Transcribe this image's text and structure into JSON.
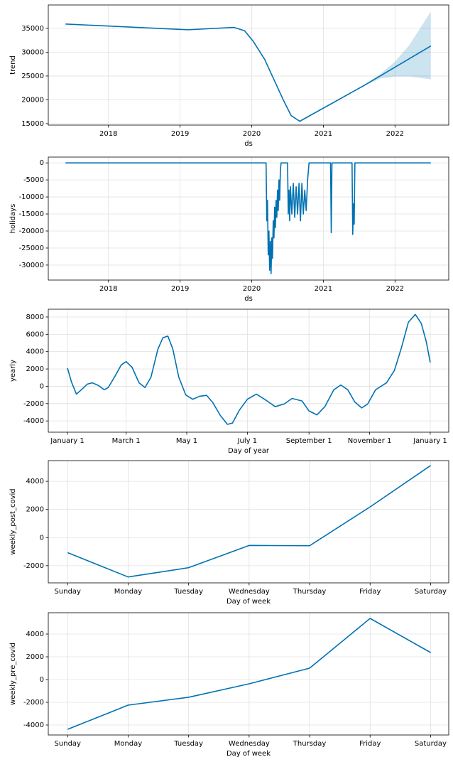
{
  "chart_data": [
    {
      "type": "line",
      "ylabel": "trend",
      "xlabel": "ds",
      "color": "#0072B2",
      "band_color": "#0072B2",
      "grid": true,
      "x": [
        2017.4,
        2019.11,
        2019.75,
        2019.9,
        2020.02,
        2020.18,
        2020.44,
        2020.55,
        2020.67,
        2021.59,
        2022.5
      ],
      "values": [
        35900,
        34700,
        35200,
        34500,
        32300,
        28500,
        20000,
        16700,
        15500,
        23200,
        31300
      ],
      "band": {
        "x": [
          2021.59,
          2021.8,
          2022.0,
          2022.2,
          2022.5
        ],
        "upper": [
          23300,
          25500,
          28000,
          31500,
          38500
        ],
        "lower": [
          23100,
          24500,
          24900,
          24900,
          24300
        ]
      },
      "xlim": [
        2017.16,
        2022.75
      ],
      "xticks": [
        2018,
        2019,
        2020,
        2021,
        2022
      ],
      "ylim": [
        14700,
        39900
      ],
      "yticks": [
        15000,
        20000,
        25000,
        30000,
        35000
      ]
    },
    {
      "type": "line",
      "ylabel": "holidays",
      "xlabel": "ds",
      "color": "#0072B2",
      "grid": true,
      "x": [
        2017.4,
        2020.2,
        2020.21,
        2020.22,
        2020.23,
        2020.24,
        2020.25,
        2020.26,
        2020.27,
        2020.28,
        2020.29,
        2020.3,
        2020.31,
        2020.32,
        2020.33,
        2020.34,
        2020.35,
        2020.36,
        2020.37,
        2020.38,
        2020.39,
        2020.4,
        2020.41,
        2020.5,
        2020.51,
        2020.52,
        2020.53,
        2020.54,
        2020.56,
        2020.58,
        2020.6,
        2020.62,
        2020.64,
        2020.66,
        2020.68,
        2020.7,
        2020.72,
        2020.74,
        2020.76,
        2020.78,
        2020.8,
        2021.1,
        2021.11,
        2021.12,
        2021.4,
        2021.41,
        2021.42,
        2021.43,
        2021.44,
        2022.5
      ],
      "values": [
        0,
        0,
        -17000,
        -11000,
        -27000,
        -20000,
        -31500,
        -23000,
        -32500,
        -22000,
        -28000,
        -17000,
        -22000,
        -13000,
        -19000,
        -11000,
        -16000,
        -8000,
        -14000,
        -5000,
        -11000,
        -2000,
        0,
        0,
        -15000,
        -8000,
        -17000,
        -7000,
        -15000,
        -6000,
        -16000,
        -7000,
        -15000,
        -6000,
        -17000,
        -6000,
        -15000,
        -8000,
        -14000,
        -5000,
        0,
        0,
        -20500,
        0,
        0,
        -21000,
        -12000,
        -18000,
        0,
        0
      ],
      "xlim": [
        2017.16,
        2022.75
      ],
      "xticks": [
        2018,
        2019,
        2020,
        2021,
        2022
      ],
      "ylim": [
        -34400,
        1700
      ],
      "yticks": [
        -30000,
        -25000,
        -20000,
        -15000,
        -10000,
        -5000,
        0
      ]
    },
    {
      "type": "line",
      "ylabel": "yearly",
      "xlabel": "Day of year",
      "color": "#0072B2",
      "grid": true,
      "x": [
        0,
        4,
        9,
        14,
        20,
        25,
        31,
        37,
        41,
        48,
        54,
        59,
        65,
        72,
        78,
        84,
        91,
        96,
        101,
        106,
        112,
        119,
        126,
        133,
        140,
        146,
        154,
        161,
        166,
        173,
        181,
        190,
        199,
        209,
        218,
        226,
        236,
        243,
        251,
        259,
        268,
        275,
        282,
        289,
        296,
        302,
        310,
        321,
        329,
        336,
        343,
        350,
        356,
        361,
        365
      ],
      "values": [
        2100,
        500,
        -900,
        -400,
        250,
        400,
        100,
        -400,
        -150,
        1200,
        2450,
        2850,
        2200,
        400,
        -150,
        1050,
        4300,
        5600,
        5800,
        4300,
        1050,
        -1000,
        -1500,
        -1150,
        -1050,
        -1850,
        -3400,
        -4400,
        -4250,
        -2750,
        -1500,
        -900,
        -1550,
        -2350,
        -2050,
        -1400,
        -1700,
        -2850,
        -3300,
        -2350,
        -400,
        150,
        -400,
        -1800,
        -2500,
        -2050,
        -400,
        400,
        1850,
        4450,
        7400,
        8300,
        7250,
        5150,
        2750
      ],
      "xlim": [
        -19.3,
        383.6
      ],
      "xticks": [
        {
          "value": 0,
          "label": "January 1"
        },
        {
          "value": 59,
          "label": "March 1"
        },
        {
          "value": 120,
          "label": "May 1"
        },
        {
          "value": 181,
          "label": "July 1"
        },
        {
          "value": 243,
          "label": "September 1"
        },
        {
          "value": 304,
          "label": "November 1"
        },
        {
          "value": 365,
          "label": "January 1"
        }
      ],
      "ylim": [
        -5300,
        8900
      ],
      "yticks": [
        -4000,
        -2000,
        0,
        2000,
        4000,
        6000,
        8000
      ]
    },
    {
      "type": "line",
      "ylabel": "weekly_post_covid",
      "xlabel": "Day of week",
      "color": "#0072B2",
      "grid": true,
      "categories": [
        "Sunday",
        "Monday",
        "Tuesday",
        "Wednesday",
        "Thursday",
        "Friday",
        "Saturday"
      ],
      "values": [
        -1070,
        -2800,
        -2140,
        -560,
        -580,
        2180,
        5120
      ],
      "ylim": [
        -3220,
        5470
      ],
      "yticks": [
        -2000,
        0,
        2000,
        4000
      ]
    },
    {
      "type": "line",
      "ylabel": "weekly_pre_covid",
      "xlabel": "Day of week",
      "color": "#0072B2",
      "grid": true,
      "categories": [
        "Sunday",
        "Monday",
        "Tuesday",
        "Wednesday",
        "Thursday",
        "Friday",
        "Saturday"
      ],
      "values": [
        -4375,
        -2250,
        -1560,
        -375,
        1000,
        5375,
        2375
      ],
      "ylim": [
        -4875,
        5875
      ],
      "yticks": [
        -4000,
        -2000,
        0,
        2000,
        4000
      ]
    }
  ]
}
